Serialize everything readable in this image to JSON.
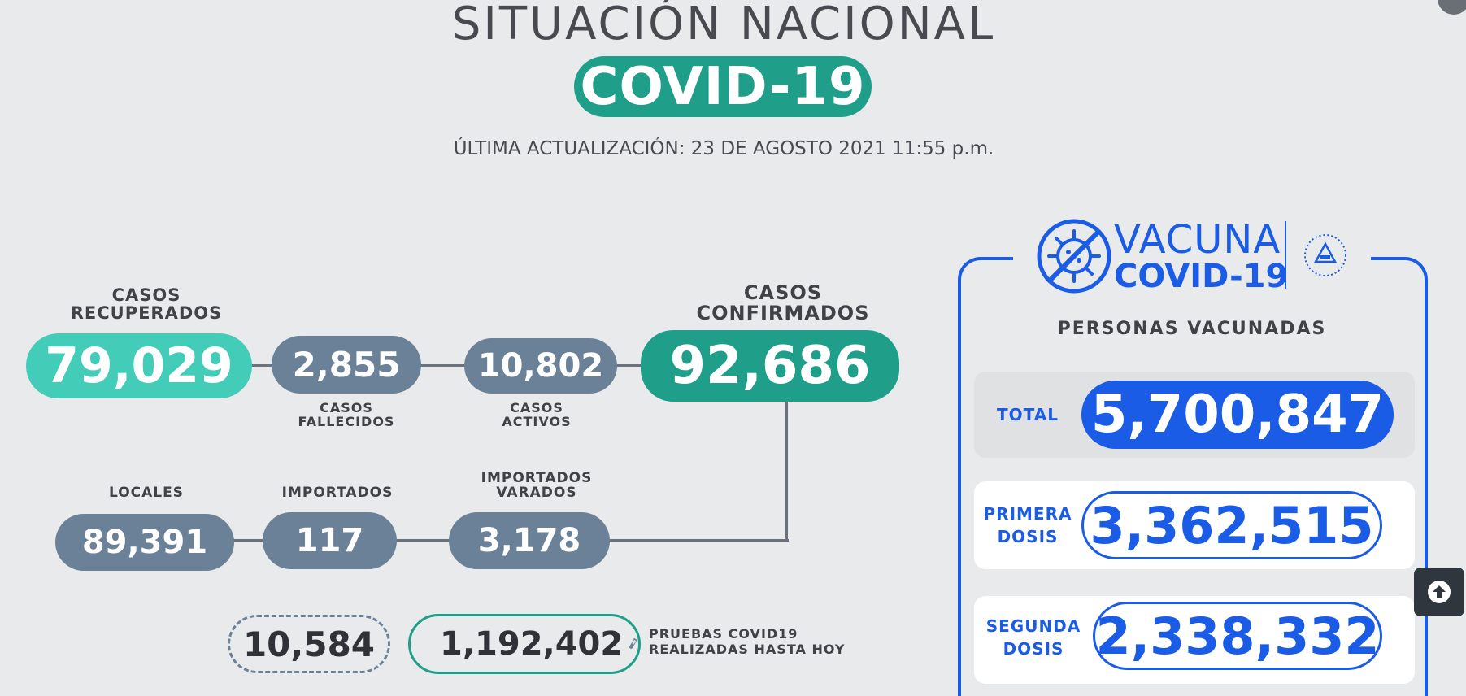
{
  "header": {
    "title": "SITUACIÓN NACIONAL",
    "badge": "COVID-19",
    "last_update": "ÚLTIMA ACTUALIZACIÓN: 23 DE AGOSTO 2021 11:55 p.m."
  },
  "stats": {
    "recovered": {
      "label_line1": "CASOS",
      "label_line2": "RECUPERADOS",
      "value": "79,029"
    },
    "deceased": {
      "label_line1": "CASOS",
      "label_line2": "FALLECIDOS",
      "value": "2,855"
    },
    "active": {
      "label_line1": "CASOS",
      "label_line2": "ACTIVOS",
      "value": "10,802"
    },
    "confirmed": {
      "label_line1": "CASOS",
      "label_line2": "CONFIRMADOS",
      "value": "92,686"
    },
    "local": {
      "label": "LOCALES",
      "value": "89,391"
    },
    "imported": {
      "label": "IMPORTADOS",
      "value": "117"
    },
    "imported_stranded": {
      "label_line1": "IMPORTADOS",
      "label_line2": "VARADOS",
      "value": "3,178"
    },
    "tests_today": {
      "value": "10,584"
    },
    "tests_total": {
      "value": "1,192,402",
      "label_line1": "PRUEBAS COVID19",
      "label_line2": "REALIZADAS HASTA HOY"
    }
  },
  "vaccine": {
    "logo_word1": "VACUNA",
    "logo_word2": "COVID-19",
    "title": "PERSONAS VACUNADAS",
    "total": {
      "label": "TOTAL",
      "value": "5,700,847"
    },
    "first_dose": {
      "label_line1": "PRIMERA",
      "label_line2": "DOSIS",
      "value": "3,362,515"
    },
    "second_dose": {
      "label_line1": "SEGUNDA",
      "label_line2": "DOSIS",
      "value": "2,338,332"
    }
  },
  "colors": {
    "teal": "#1f9e8a",
    "mint": "#43cdb8",
    "slate": "#6b8197",
    "vaccine_blue": "#1a5ce6"
  },
  "icons": {
    "test_icon": "test-tube-icon",
    "virus_icon": "crossed-virus-icon",
    "emblem_icon": "national-emblem-icon",
    "top_icon": "arrow-up-circle-icon"
  }
}
